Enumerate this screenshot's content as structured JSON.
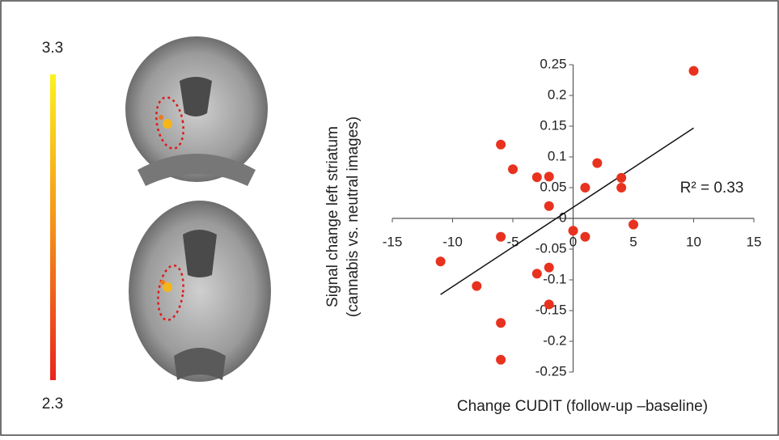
{
  "chart_data": {
    "type": "scatter",
    "colorbar": {
      "max": 3.3,
      "min": 2.3
    },
    "annotation": "R² = 0.33",
    "xlabel": "Change CUDIT (follow-up –baseline)",
    "ylabel": [
      "Signal change left striatum",
      "(cannabis vs. neutral images)"
    ],
    "color": "#e8321f",
    "x": [
      10,
      -6,
      -5,
      -3,
      -2,
      -2,
      2,
      1,
      4,
      4,
      5,
      0,
      1,
      -6,
      -11,
      -8,
      -3,
      -2,
      -2,
      -6,
      -6
    ],
    "values": [
      0.24,
      0.12,
      0.08,
      0.067,
      0.068,
      0.02,
      0.09,
      0.05,
      0.066,
      0.05,
      -0.01,
      -0.02,
      -0.03,
      -0.03,
      -0.07,
      -0.11,
      -0.09,
      -0.08,
      -0.14,
      -0.17,
      -0.23
    ],
    "trendline": {
      "slope": 0.0129,
      "intercept": 0.018
    },
    "xlim": [
      -15,
      15
    ],
    "xticks": [
      -15,
      -10,
      -5,
      0,
      5,
      10,
      15
    ],
    "ylim": [
      -0.25,
      0.25
    ],
    "yticks": [
      0.25,
      0.2,
      0.15,
      0.1,
      0.05,
      0,
      -0.05,
      -0.1,
      -0.15,
      -0.2,
      -0.25
    ]
  }
}
